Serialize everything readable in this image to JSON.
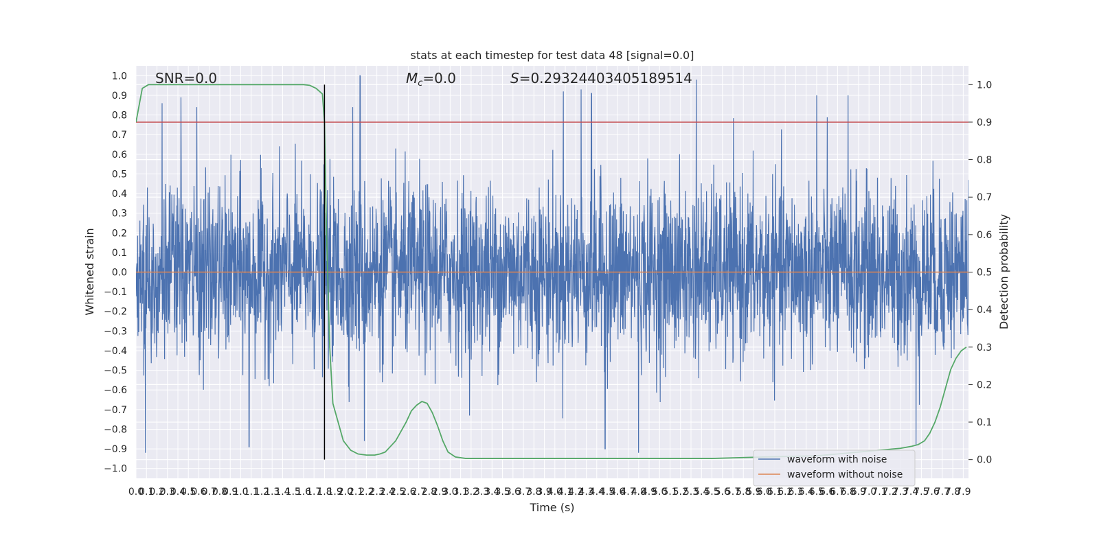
{
  "chart_data": {
    "type": "line",
    "title": "stats at each timestep for test data 48 [signal=0.0]",
    "xlabel": "Time (s)",
    "ylabel": "Whitened strain",
    "y2label": "Detection probability",
    "xlim": [
      0.0,
      7.95
    ],
    "ylim": [
      -1.05,
      1.05
    ],
    "y2lim": [
      -0.05,
      1.05
    ],
    "grid": true,
    "legend_position": "lower-right",
    "annotations": {
      "snr": "SNR=0.0",
      "mc_symbol": "M",
      "mc_sub": "c",
      "mc_value": "=0.0",
      "s_symbol": "S",
      "s_value": "=0.29324403405189514"
    },
    "x_ticks": [
      "0.0",
      "0.1",
      "0.2",
      "0.3",
      "0.4",
      "0.5",
      "0.6",
      "0.7",
      "0.8",
      "0.9",
      "1.0",
      "1.1",
      "1.2",
      "1.3",
      "1.4",
      "1.5",
      "1.6",
      "1.7",
      "1.8",
      "1.9",
      "2.0",
      "2.1",
      "2.2",
      "2.3",
      "2.4",
      "2.5",
      "2.6",
      "2.7",
      "2.8",
      "2.9",
      "3.0",
      "3.1",
      "3.2",
      "3.3",
      "3.4",
      "3.5",
      "3.6",
      "3.7",
      "3.8",
      "3.9",
      "4.0",
      "4.1",
      "4.2",
      "4.3",
      "4.4",
      "4.5",
      "4.6",
      "4.7",
      "4.8",
      "4.9",
      "5.0",
      "5.1",
      "5.2",
      "5.3",
      "5.4",
      "5.5",
      "5.6",
      "5.7",
      "5.8",
      "5.9",
      "6.0",
      "6.1",
      "6.2",
      "6.3",
      "6.4",
      "6.5",
      "6.6",
      "6.7",
      "6.8",
      "6.9",
      "7.0",
      "7.1",
      "7.2",
      "7.3",
      "7.4",
      "7.5",
      "7.6",
      "7.7",
      "7.8",
      "7.9"
    ],
    "y_ticks": [
      "1.0",
      "0.9",
      "0.8",
      "0.7",
      "0.6",
      "0.5",
      "0.4",
      "0.3",
      "0.2",
      "0.1",
      "0.0",
      "−0.1",
      "−0.2",
      "−0.3",
      "−0.4",
      "−0.5",
      "−0.6",
      "−0.7",
      "−0.8",
      "−0.9",
      "−1.0"
    ],
    "y2_ticks": [
      "1.0",
      "0.9",
      "0.8",
      "0.7",
      "0.6",
      "0.5",
      "0.4",
      "0.3",
      "0.2",
      "0.1",
      "0.0"
    ],
    "series": [
      {
        "name": "waveform with noise",
        "color": "#4c72b0",
        "style": "dense noise, roughly Gaussian, amplitude mostly within ±0.6 with peaks to about ±1.0",
        "peaks": [
          {
            "x": 0.09,
            "y": -0.92
          },
          {
            "x": 0.25,
            "y": 0.86
          },
          {
            "x": 0.43,
            "y": 0.89
          },
          {
            "x": 0.58,
            "y": 0.84
          },
          {
            "x": 1.08,
            "y": -0.89
          },
          {
            "x": 2.07,
            "y": 0.84
          },
          {
            "x": 2.14,
            "y": 1.0
          },
          {
            "x": 2.18,
            "y": -0.86
          },
          {
            "x": 4.08,
            "y": 0.92
          },
          {
            "x": 4.25,
            "y": 0.93
          },
          {
            "x": 4.35,
            "y": 0.91
          },
          {
            "x": 4.48,
            "y": -0.9
          },
          {
            "x": 4.8,
            "y": -0.92
          },
          {
            "x": 5.35,
            "y": 0.98
          },
          {
            "x": 6.5,
            "y": 0.9
          },
          {
            "x": 6.8,
            "y": 0.9
          },
          {
            "x": 7.45,
            "y": -0.88
          }
        ]
      },
      {
        "name": "waveform without noise",
        "color": "#dd8452",
        "x": [
          0.0,
          7.95
        ],
        "y": [
          0.0,
          0.0
        ]
      },
      {
        "name": "",
        "color": "#55a868",
        "axis": "right",
        "x": [
          0.0,
          0.06,
          0.12,
          0.2,
          0.4,
          0.8,
          1.2,
          1.5,
          1.6,
          1.66,
          1.72,
          1.78,
          1.8,
          1.82,
          1.85,
          1.88,
          1.93,
          1.98,
          2.05,
          2.12,
          2.2,
          2.28,
          2.33,
          2.38,
          2.43,
          2.48,
          2.53,
          2.58,
          2.63,
          2.68,
          2.73,
          2.78,
          2.83,
          2.88,
          2.93,
          2.98,
          3.05,
          3.15,
          3.5,
          4.0,
          4.5,
          5.0,
          5.5,
          6.0,
          6.5,
          6.9,
          7.1,
          7.3,
          7.4,
          7.47,
          7.53,
          7.58,
          7.63,
          7.68,
          7.73,
          7.78,
          7.83,
          7.88,
          7.93
        ],
        "y": [
          0.9,
          0.99,
          1.0,
          1.0,
          1.0,
          1.0,
          1.0,
          1.0,
          1.0,
          0.998,
          0.99,
          0.975,
          0.9,
          0.6,
          0.3,
          0.15,
          0.1,
          0.05,
          0.025,
          0.015,
          0.012,
          0.012,
          0.015,
          0.02,
          0.035,
          0.05,
          0.075,
          0.1,
          0.13,
          0.145,
          0.155,
          0.15,
          0.125,
          0.09,
          0.05,
          0.02,
          0.007,
          0.003,
          0.003,
          0.003,
          0.003,
          0.003,
          0.003,
          0.007,
          0.01,
          0.02,
          0.025,
          0.03,
          0.035,
          0.04,
          0.05,
          0.07,
          0.1,
          0.14,
          0.19,
          0.24,
          0.27,
          0.29,
          0.3
        ]
      },
      {
        "name": "",
        "color": "#c44e52",
        "axis": "right",
        "x": [
          0.0,
          7.95
        ],
        "y": [
          0.9,
          0.9
        ]
      }
    ],
    "vertical_line": {
      "x": 1.8,
      "color": "#000000"
    }
  }
}
